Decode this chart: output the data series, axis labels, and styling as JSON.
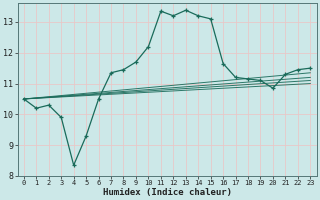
{
  "xlabel": "Humidex (Indice chaleur)",
  "background_color": "#cce8e8",
  "grid_color": "#e8c8c8",
  "line_color": "#1a6b5a",
  "xlim": [
    -0.5,
    23.5
  ],
  "ylim": [
    8,
    13.6
  ],
  "yticks": [
    8,
    9,
    10,
    11,
    12,
    13
  ],
  "xticks": [
    0,
    1,
    2,
    3,
    4,
    5,
    6,
    7,
    8,
    9,
    10,
    11,
    12,
    13,
    14,
    15,
    16,
    17,
    18,
    19,
    20,
    21,
    22,
    23
  ],
  "main_line": [
    [
      0,
      10.5
    ],
    [
      1,
      10.2
    ],
    [
      2,
      10.3
    ],
    [
      3,
      9.9
    ],
    [
      4,
      8.35
    ],
    [
      5,
      9.3
    ],
    [
      6,
      10.5
    ],
    [
      7,
      11.35
    ],
    [
      8,
      11.45
    ],
    [
      9,
      11.7
    ],
    [
      10,
      12.2
    ],
    [
      11,
      13.35
    ],
    [
      12,
      13.2
    ],
    [
      13,
      13.38
    ],
    [
      14,
      13.2
    ],
    [
      15,
      13.1
    ],
    [
      16,
      11.65
    ],
    [
      17,
      11.2
    ],
    [
      18,
      11.15
    ],
    [
      19,
      11.1
    ],
    [
      20,
      10.85
    ],
    [
      21,
      11.3
    ],
    [
      22,
      11.45
    ],
    [
      23,
      11.5
    ]
  ],
  "trend_lines": [
    [
      [
        0,
        10.5
      ],
      [
        23,
        11.0
      ]
    ],
    [
      [
        0,
        10.5
      ],
      [
        23,
        11.1
      ]
    ],
    [
      [
        0,
        10.5
      ],
      [
        23,
        11.2
      ]
    ],
    [
      [
        0,
        10.5
      ],
      [
        23,
        11.35
      ]
    ]
  ]
}
